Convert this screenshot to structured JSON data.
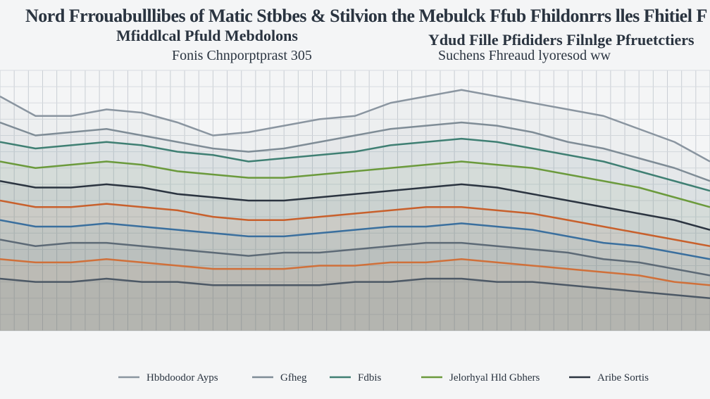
{
  "title": {
    "line1": "Nord Frrouabulllibes of Matic Stbbes & Stilvion the Mebulck Ffub Fhildonrrs lles Fhitiel F",
    "line2": "Mfiddlcal Pfuld Mebdolons",
    "line3": "Ydud Fille Pfididers Filnlge Pfruetctiers",
    "line4": "Fonis Chnporptprast 305",
    "line5": "Suchens Fhreaud lyoresod ww"
  },
  "chart_data": {
    "type": "line",
    "title": "Nord Frrouabulllibes of Matic Stbbes & Stilvion the Mebulck Ffub Fhildonrrs lles Fhitiel F",
    "grid": true,
    "legend_position": "bottom",
    "x": [
      0,
      1,
      2,
      3,
      4,
      5,
      6,
      7,
      8,
      9,
      10,
      11,
      12,
      13,
      14,
      15,
      16,
      17,
      18,
      19,
      20
    ],
    "series": [
      {
        "name": "Hbbdoodor Ayps",
        "color": "#8a95a0",
        "values": [
          72,
          66,
          66,
          68,
          67,
          64,
          60,
          61,
          63,
          65,
          66,
          70,
          72,
          74,
          72,
          70,
          68,
          66,
          62,
          58,
          52
        ]
      },
      {
        "name": "Gfheg",
        "color": "#7f8c96",
        "values": [
          64,
          60,
          61,
          62,
          60,
          58,
          56,
          55,
          56,
          58,
          60,
          62,
          63,
          64,
          63,
          61,
          58,
          56,
          53,
          50,
          46
        ]
      },
      {
        "name": "Fdbis",
        "color": "#3f7f73",
        "values": [
          58,
          56,
          57,
          58,
          57,
          55,
          54,
          52,
          53,
          54,
          55,
          57,
          58,
          59,
          58,
          56,
          54,
          52,
          49,
          46,
          43
        ]
      },
      {
        "name": "Jelorhyal Hld Gbhers",
        "color": "#6b9a3c",
        "values": [
          52,
          50,
          51,
          52,
          51,
          49,
          48,
          47,
          47,
          48,
          49,
          50,
          51,
          52,
          51,
          50,
          48,
          46,
          44,
          41,
          38
        ]
      },
      {
        "name": "Aribe Sortis",
        "color": "#2b3440",
        "values": [
          46,
          44,
          44,
          45,
          44,
          42,
          41,
          40,
          40,
          41,
          42,
          43,
          44,
          45,
          44,
          42,
          40,
          38,
          36,
          34,
          31
        ]
      },
      {
        "name": "",
        "color": "#c8602c",
        "values": [
          40,
          38,
          38,
          39,
          38,
          37,
          35,
          34,
          34,
          35,
          36,
          37,
          38,
          38,
          37,
          36,
          34,
          32,
          30,
          28,
          26
        ]
      },
      {
        "name": "",
        "color": "#3a6f9e",
        "values": [
          34,
          32,
          32,
          33,
          32,
          31,
          30,
          29,
          29,
          30,
          31,
          32,
          32,
          33,
          32,
          31,
          29,
          27,
          26,
          24,
          22
        ]
      },
      {
        "name": "",
        "color": "#5d6a76",
        "values": [
          28,
          26,
          27,
          27,
          26,
          25,
          24,
          23,
          24,
          24,
          25,
          26,
          27,
          27,
          26,
          25,
          24,
          22,
          21,
          19,
          17
        ]
      },
      {
        "name": "",
        "color": "#d0703a",
        "values": [
          22,
          21,
          21,
          22,
          21,
          20,
          19,
          19,
          19,
          20,
          20,
          21,
          21,
          22,
          21,
          20,
          19,
          18,
          17,
          15,
          14
        ]
      },
      {
        "name": "",
        "color": "#4c5865",
        "values": [
          16,
          15,
          15,
          16,
          15,
          15,
          14,
          14,
          14,
          14,
          15,
          15,
          16,
          16,
          15,
          15,
          14,
          13,
          12,
          11,
          10
        ]
      }
    ],
    "ylim": [
      0,
      80
    ]
  },
  "legend": {
    "items": [
      {
        "label": "Hbbdoodor Ayps",
        "color": "#8a95a0"
      },
      {
        "label": "Gfheg",
        "color": "#7f8c96"
      },
      {
        "label": "Fdbis",
        "color": "#3f7f73"
      },
      {
        "label": "Jelorhyal Hld Gbhers",
        "color": "#6b9a3c"
      },
      {
        "label": "Aribe Sortis",
        "color": "#2b3440"
      }
    ]
  }
}
